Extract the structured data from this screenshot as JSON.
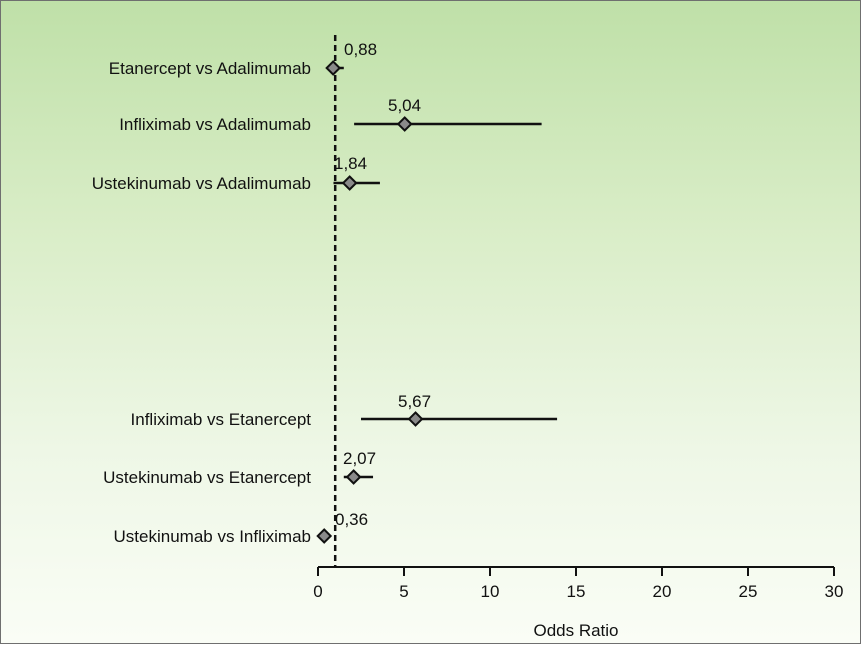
{
  "chart_data": {
    "type": "forest",
    "xlabel": "Odds Ratio",
    "xlim": [
      0,
      30
    ],
    "xticks": [
      0,
      5,
      10,
      15,
      20,
      25,
      30
    ],
    "reference_line": 1,
    "rows": [
      {
        "label": "Etanercept vs Adalimumab",
        "value": 0.88,
        "value_label": "0,88",
        "ci_low": 0.5,
        "ci_high": 1.5
      },
      {
        "label": "Infliximab vs Adalimumab",
        "value": 5.04,
        "value_label": "5,04",
        "ci_low": 2.1,
        "ci_high": 13.0
      },
      {
        "label": "Ustekinumab vs Adalimumab",
        "value": 1.84,
        "value_label": "1,84",
        "ci_low": 0.9,
        "ci_high": 3.6
      },
      {
        "label": "Infliximab vs Etanercept",
        "value": 5.67,
        "value_label": "5,67",
        "ci_low": 2.5,
        "ci_high": 13.9
      },
      {
        "label": "Ustekinumab vs Etanercept",
        "value": 2.07,
        "value_label": "2,07",
        "ci_low": 1.5,
        "ci_high": 3.2
      },
      {
        "label": "Ustekinumab vs Infliximab",
        "value": 0.36,
        "value_label": "0,36",
        "ci_low": 0.36,
        "ci_high": 0.36
      }
    ],
    "colors": {
      "marker_fill": "#8a8a8a",
      "marker_stroke": "#111111",
      "line": "#111111",
      "background_top": "#bfe0a8",
      "background_bottom": "#fafdf6"
    }
  }
}
